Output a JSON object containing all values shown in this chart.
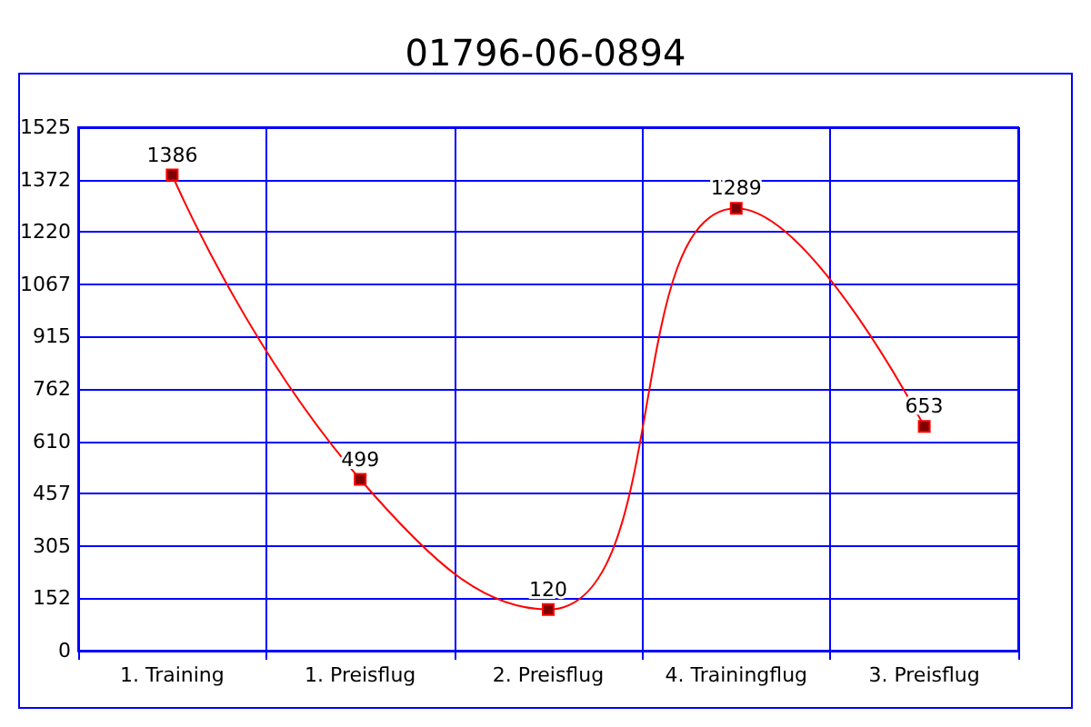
{
  "chart_data": {
    "type": "line",
    "title": "01796-06-0894",
    "categories": [
      "1. Training",
      "1. Preisflug",
      "2. Preisflug",
      "4. Trainingflug",
      "3. Preisflug"
    ],
    "series": [
      {
        "color": "#ff0000",
        "values": [
          1386,
          499,
          120,
          1289,
          653
        ]
      }
    ],
    "ylim": [
      0,
      1525
    ],
    "yticks": [
      0,
      {
        "value": 152.5,
        "label": "152"
      },
      {
        "value": 305,
        "label": "305"
      },
      {
        "value": 457.5,
        "label": "457"
      },
      {
        "value": 610,
        "label": "610"
      },
      {
        "value": 762.5,
        "label": "762"
      },
      {
        "value": 915,
        "label": "915"
      },
      {
        "value": 1067.5,
        "label": "1067"
      },
      {
        "value": 1220,
        "label": "1220"
      },
      {
        "value": 1372.5,
        "label": "1372"
      },
      {
        "value": 1525,
        "label": "1525"
      }
    ],
    "grid": true,
    "marker": "square",
    "data_labels": true
  }
}
